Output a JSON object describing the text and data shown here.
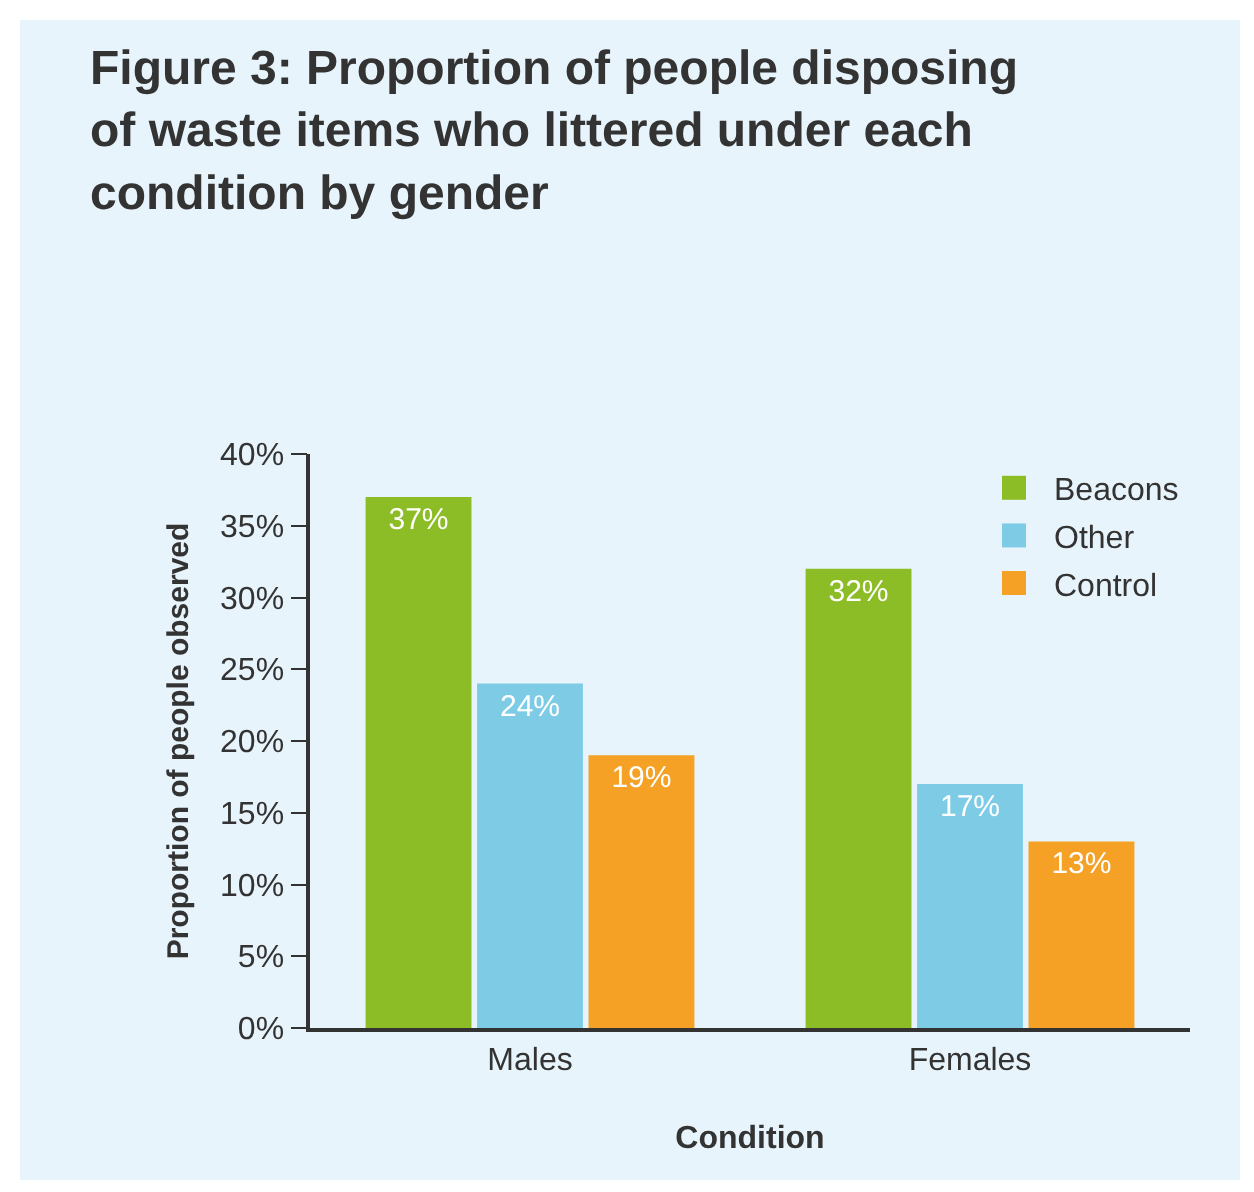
{
  "chart_data": {
    "type": "bar",
    "title": "Figure 3: Proportion of people disposing of waste items who littered under each condition by gender",
    "xlabel": "Condition",
    "ylabel": "Proportion of people observed",
    "categories": [
      "Males",
      "Females"
    ],
    "series": [
      {
        "name": "Beacons",
        "color": "#8cbd26",
        "values": [
          37,
          32
        ],
        "value_labels": [
          "37%",
          "32%"
        ]
      },
      {
        "name": "Other",
        "color": "#7ecbe6",
        "values": [
          24,
          17
        ],
        "value_labels": [
          "24%",
          "17%"
        ]
      },
      {
        "name": "Control",
        "color": "#f4a125",
        "values": [
          19,
          13
        ],
        "value_labels": [
          "19%",
          "13%"
        ]
      }
    ],
    "ylim": [
      0,
      40
    ],
    "yticks": [
      {
        "value": 0,
        "label": "0%"
      },
      {
        "value": 5,
        "label": "5%"
      },
      {
        "value": 10,
        "label": "10%"
      },
      {
        "value": 15,
        "label": "15%"
      },
      {
        "value": 20,
        "label": "20%"
      },
      {
        "value": 25,
        "label": "25%"
      },
      {
        "value": 30,
        "label": "30%"
      },
      {
        "value": 35,
        "label": "35%"
      },
      {
        "value": 40,
        "label": "40%"
      }
    ],
    "grid": false,
    "legend": "top right"
  }
}
